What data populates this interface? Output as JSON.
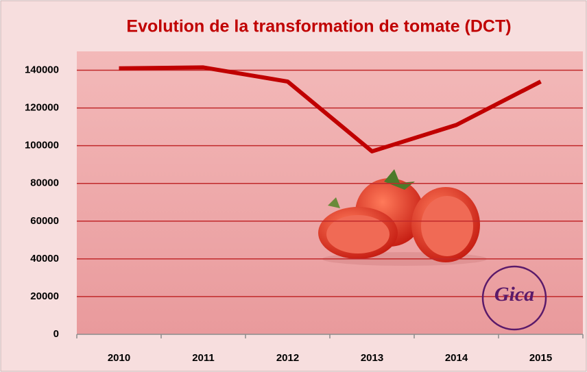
{
  "chart_data": {
    "type": "line",
    "title": "Evolution de la transformation de tomate (DCT)",
    "categories": [
      "2010",
      "2011",
      "2012",
      "2013",
      "2014",
      "2015"
    ],
    "series": [
      {
        "name": "DCT",
        "color": "#c00000",
        "values": [
          141000,
          141500,
          134000,
          97000,
          111000,
          134000
        ]
      }
    ],
    "ylim": [
      0,
      150000
    ],
    "yticks": [
      0,
      20000,
      40000,
      60000,
      80000,
      100000,
      120000,
      140000
    ],
    "grid": true,
    "logo": "Gica"
  }
}
